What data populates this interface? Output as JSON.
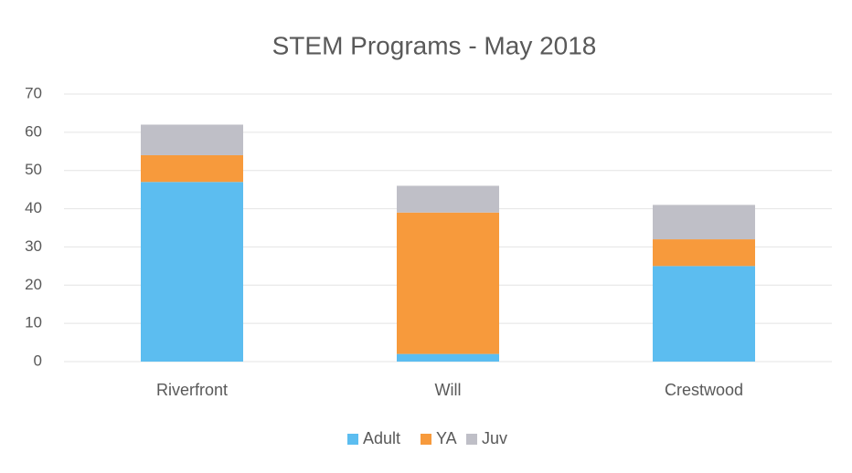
{
  "chart_data": {
    "type": "bar",
    "stacked": true,
    "title": "STEM Programs - May 2018",
    "categories": [
      "Riverfront",
      "Will",
      "Crestwood"
    ],
    "series": [
      {
        "name": "Adult",
        "color": "#5cbdf0",
        "values": [
          47,
          2,
          25
        ]
      },
      {
        "name": "YA",
        "color": "#f79a3c",
        "values": [
          7,
          37,
          7
        ]
      },
      {
        "name": "Juv",
        "color": "#bfbfc7",
        "values": [
          8,
          7,
          9
        ]
      }
    ],
    "ylim": [
      0,
      70
    ],
    "yticks": [
      0,
      10,
      20,
      30,
      40,
      50,
      60,
      70
    ],
    "grid": true,
    "legend": "bottom"
  }
}
